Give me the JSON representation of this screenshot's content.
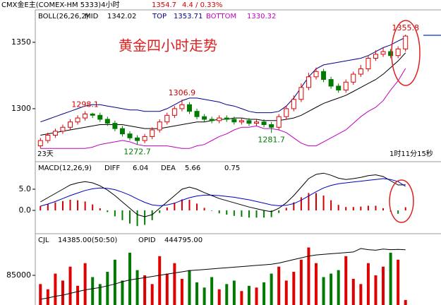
{
  "header": {
    "symbol": "CMX金E主(COMEX-HM 5333)4小时",
    "change": "4.4 / 0.33%"
  },
  "chart_data": [
    {
      "type": "candlestick",
      "title": "黄金四小时走势",
      "indicator": "BOLL(26,26,2)",
      "start_label": "23天",
      "timer": "1时11分15秒",
      "up_color": "#e00000",
      "down_color": "#007a00",
      "ylim": [
        1260.6,
        1373.9
      ],
      "yticks": [
        1300,
        1350
      ],
      "open": [
        1272,
        1276,
        1280,
        1283,
        1286,
        1290,
        1293,
        1296,
        1295,
        1292,
        1289,
        1285,
        1281,
        1278,
        1276,
        1279,
        1284,
        1290,
        1295,
        1300,
        1303,
        1298,
        1294,
        1292,
        1291,
        1293,
        1292,
        1290,
        1291,
        1289,
        1290,
        1288,
        1286,
        1294,
        1300,
        1307,
        1316,
        1324,
        1328,
        1322,
        1317,
        1314,
        1320,
        1326,
        1330,
        1338,
        1341,
        1343,
        1340,
        1345
      ],
      "high": [
        1278,
        1282,
        1285,
        1288,
        1292,
        1295,
        1298.1,
        1297,
        1297,
        1294,
        1291,
        1287,
        1283,
        1280,
        1281,
        1286,
        1292,
        1297,
        1302,
        1306.9,
        1305,
        1300,
        1296,
        1294,
        1295,
        1295,
        1294,
        1293,
        1293,
        1292,
        1292,
        1290,
        1296,
        1302,
        1310,
        1319,
        1327,
        1331,
        1330,
        1324,
        1319,
        1322,
        1328,
        1333,
        1340,
        1344,
        1346,
        1345,
        1347,
        1355.8
      ],
      "low": [
        1270,
        1274,
        1278,
        1281,
        1284,
        1288,
        1291,
        1293,
        1290,
        1287,
        1283,
        1279,
        1276,
        1272.7,
        1274,
        1277,
        1282,
        1288,
        1293,
        1298,
        1296,
        1292,
        1290,
        1289,
        1289,
        1290,
        1288,
        1288,
        1287,
        1287,
        1286,
        1281.7,
        1284,
        1292,
        1298,
        1305,
        1314,
        1322,
        1320,
        1315,
        1312,
        1312,
        1318,
        1324,
        1328,
        1336,
        1339,
        1338,
        1338,
        1343
      ],
      "close": [
        1276,
        1280,
        1283,
        1286,
        1290,
        1293,
        1296,
        1295,
        1292,
        1289,
        1285,
        1281,
        1278,
        1276,
        1279,
        1284,
        1290,
        1295,
        1300,
        1303,
        1298,
        1294,
        1292,
        1291,
        1293,
        1292,
        1290,
        1291,
        1289,
        1290,
        1288,
        1286,
        1294,
        1300,
        1307,
        1316,
        1324,
        1328,
        1322,
        1317,
        1314,
        1320,
        1326,
        1330,
        1338,
        1341,
        1343,
        1340,
        1345,
        1354.7
      ],
      "series": [
        {
          "name": "MID",
          "color": "#000000",
          "values": [
            1280,
            1281,
            1282,
            1283,
            1284,
            1285,
            1286,
            1287,
            1288,
            1288,
            1288,
            1288,
            1287,
            1286,
            1285,
            1285,
            1285,
            1286,
            1287,
            1288,
            1289,
            1290,
            1290,
            1291,
            1292,
            1292,
            1293,
            1293,
            1292,
            1292,
            1291,
            1291,
            1291,
            1292,
            1293,
            1295,
            1298,
            1301,
            1304,
            1306,
            1308,
            1310,
            1313,
            1316,
            1319,
            1322,
            1326,
            1331,
            1336,
            1342.02
          ]
        },
        {
          "name": "TOP",
          "color": "#00008b",
          "values": [
            1290,
            1292,
            1294,
            1296,
            1298,
            1300,
            1302,
            1303,
            1303,
            1302,
            1301,
            1300,
            1299,
            1299,
            1298,
            1298,
            1298,
            1300,
            1303,
            1306,
            1308,
            1308,
            1307,
            1306,
            1305,
            1303,
            1302,
            1300,
            1298,
            1297,
            1297,
            1297,
            1298,
            1302,
            1308,
            1316,
            1324,
            1330,
            1333,
            1334,
            1335,
            1336,
            1337,
            1338,
            1340,
            1343,
            1346,
            1348,
            1351,
            1353.71
          ]
        },
        {
          "name": "BOTTOM",
          "color": "#c000c0",
          "values": [
            1270,
            1270,
            1270,
            1270,
            1270,
            1270,
            1270,
            1271,
            1273,
            1274,
            1275,
            1276,
            1275,
            1273,
            1272,
            1272,
            1272,
            1272,
            1271,
            1270,
            1270,
            1272,
            1273,
            1276,
            1279,
            1281,
            1284,
            1286,
            1286,
            1287,
            1285,
            1285,
            1284,
            1282,
            1278,
            1274,
            1272,
            1272,
            1275,
            1278,
            1281,
            1284,
            1289,
            1294,
            1298,
            1301,
            1306,
            1314,
            1321,
            1330.32
          ]
        }
      ]
    },
    {
      "type": "macd",
      "indicator": "MACD(12,26,9)",
      "up_color": "#d00000",
      "down_color": "#008000",
      "ylim": [
        -5.33,
        11.33
      ],
      "yticks": [
        {
          "value": 5,
          "label": "5.0"
        },
        {
          "value": 0,
          "label": "0.0"
        }
      ],
      "hist": [
        1,
        1.5,
        1.9,
        2.2,
        2.5,
        2.4,
        2.1,
        1.4,
        0.5,
        -0.4,
        -1.4,
        -2.3,
        -3.1,
        -3.7,
        -3.4,
        -2.3,
        -0.6,
        0.7,
        1.8,
        2.6,
        2.5,
        1.6,
        0.6,
        -0.1,
        -0.7,
        -1,
        -1.3,
        -1.5,
        -1.7,
        -1.7,
        -1.7,
        -1.6,
        -0.6,
        0.6,
        1.9,
        3.1,
        4.1,
        4.1,
        3.5,
        2.4,
        1.3,
        0.8,
        0.8,
        0.9,
        1.1,
        1.1,
        0.5,
        -0.3,
        -0.8,
        0.75
      ],
      "series": [
        {
          "name": "DIFF",
          "color": "#000000",
          "values": [
            2,
            3,
            4,
            5,
            6,
            6.5,
            6.8,
            6.5,
            5.8,
            4.8,
            3.5,
            2,
            0.5,
            -1,
            -1.5,
            -1,
            0.5,
            2,
            3.5,
            5,
            5.5,
            5,
            4.2,
            3.5,
            2.8,
            2.3,
            1.8,
            1.3,
            0.8,
            0.4,
            0,
            -0.3,
            0.5,
            1.8,
            3.5,
            5.5,
            7.5,
            8.5,
            8.8,
            8.3,
            7.6,
            7.3,
            7.5,
            7.8,
            8.2,
            8.4,
            8.0,
            7,
            6,
            6.04
          ]
        },
        {
          "name": "DEA",
          "color": "#0000c0",
          "values": [
            1,
            1.5,
            2.1,
            2.8,
            3.5,
            4.1,
            4.7,
            5.1,
            5.3,
            5.2,
            4.9,
            4.3,
            3.6,
            2.7,
            1.9,
            1.3,
            1.1,
            1.3,
            1.7,
            2.4,
            3,
            3.4,
            3.6,
            3.6,
            3.5,
            3.3,
            3.1,
            2.8,
            2.5,
            2.1,
            1.7,
            1.3,
            1.1,
            1.2,
            1.6,
            2.4,
            3.4,
            4.4,
            5.3,
            5.9,
            6.3,
            6.5,
            6.7,
            6.9,
            7.1,
            7.3,
            7.5,
            7.3,
            6.8,
            5.66
          ]
        }
      ]
    },
    {
      "type": "volume",
      "indicator": "CJL",
      "summary": "14385.00(50:50)",
      "ylim": [
        0,
        200400
      ],
      "yticks": [
        85000
      ],
      "y2lim": [
        350000,
        470000
      ],
      "values": [
        60000,
        45000,
        90000,
        70000,
        110000,
        55000,
        120000,
        80000,
        60000,
        95000,
        130000,
        70000,
        150000,
        100000,
        85000,
        60000,
        140000,
        90000,
        120000,
        75000,
        100000,
        65000,
        50000,
        80000,
        45000,
        60000,
        70000,
        40000,
        55000,
        50000,
        65000,
        90000,
        110000,
        70000,
        95000,
        130000,
        165000,
        120000,
        80000,
        90000,
        100000,
        140000,
        75000,
        60000,
        120000,
        85000,
        110000,
        150000,
        130000,
        14385
      ],
      "series": [
        {
          "name": "OPID",
          "color": "#000000",
          "axis": "y2",
          "value_label": "444795.00",
          "values": [
            360000,
            362000,
            365000,
            367000,
            370000,
            373000,
            376000,
            378000,
            380000,
            383000,
            386000,
            390000,
            393000,
            395000,
            397000,
            399000,
            401000,
            403000,
            405000,
            407000,
            409000,
            410000,
            411000,
            412000,
            413000,
            414000,
            415000,
            416000,
            417000,
            418000,
            419000,
            420000,
            422000,
            425000,
            428000,
            431000,
            434000,
            436000,
            437000,
            438000,
            439000,
            440000,
            441000,
            447000,
            445000,
            444000,
            446000,
            445000,
            445500,
            444795
          ]
        }
      ]
    }
  ]
}
